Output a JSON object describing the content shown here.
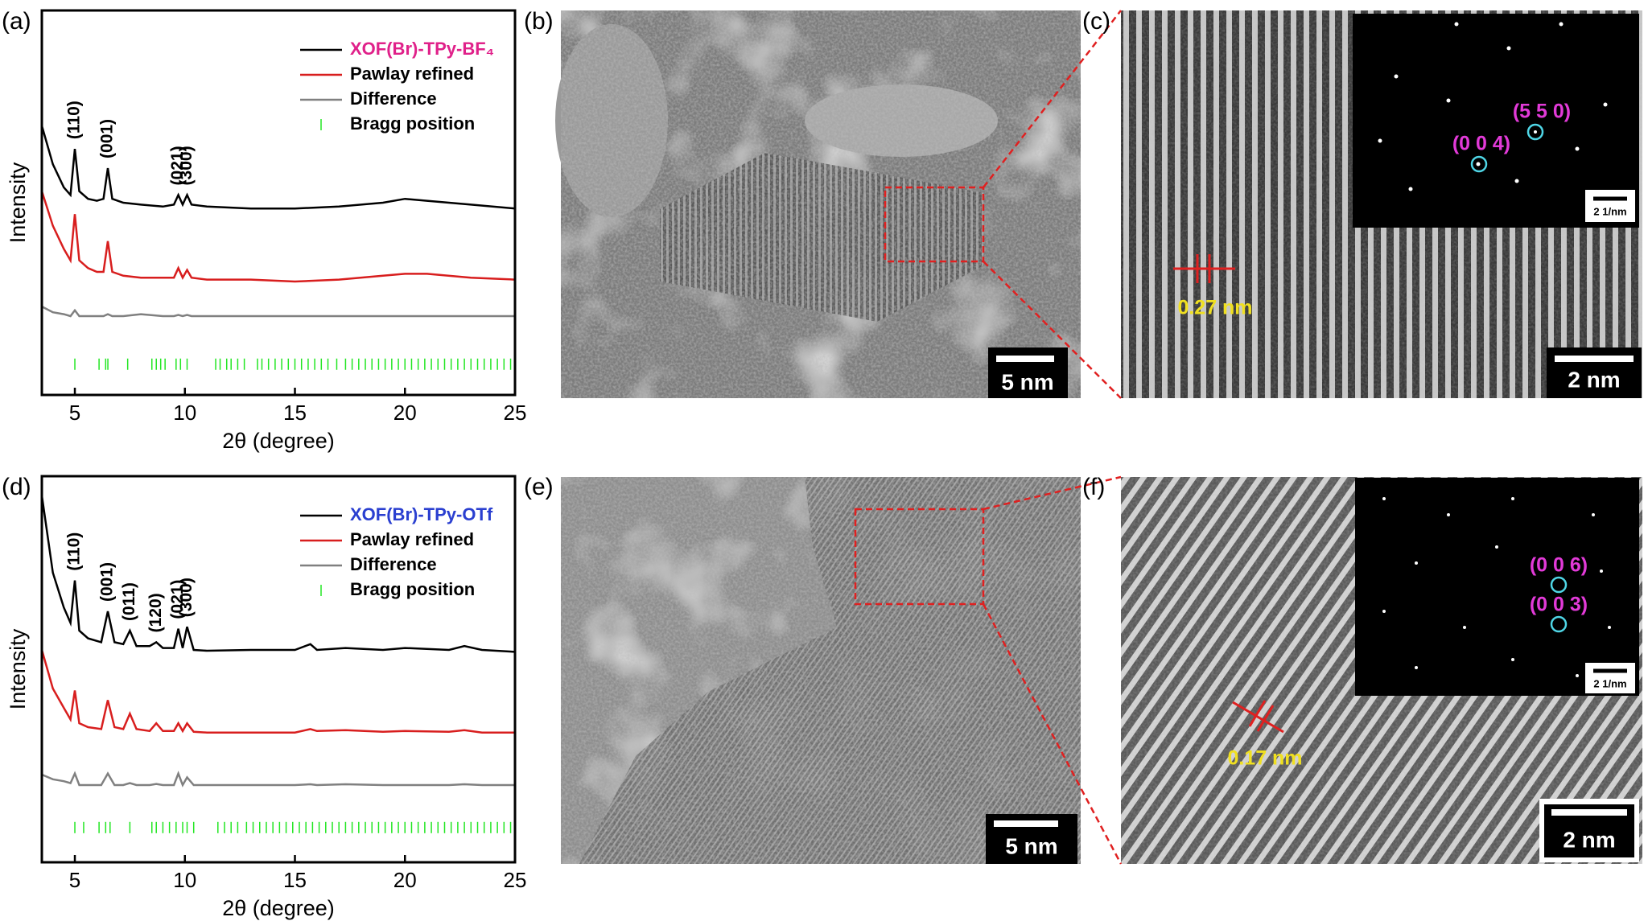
{
  "chart_data": [
    {
      "type": "line",
      "panel": "(a)",
      "xlabel": "2θ (degree)",
      "ylabel": "Intensity",
      "xlim": [
        3.5,
        25
      ],
      "xticks": [
        5,
        10,
        15,
        20,
        25
      ],
      "ylim": [
        0,
        100
      ],
      "x": [
        3.5,
        4,
        4.5,
        4.8,
        5,
        5.2,
        5.6,
        6,
        6.3,
        6.5,
        6.7,
        7.2,
        8,
        9,
        9.5,
        9.7,
        9.9,
        10.1,
        10.3,
        11,
        13,
        15,
        17,
        19,
        20,
        21,
        23,
        25
      ],
      "series": [
        {
          "name": "XOF(Br)-TPy-BF₄",
          "color": "#000000",
          "label_color": "#e0218a",
          "values": [
            70,
            60,
            54,
            52,
            64,
            53,
            51,
            50.5,
            51,
            59,
            51,
            50,
            49.5,
            49,
            49.5,
            52,
            49.5,
            52,
            49.5,
            49,
            48.5,
            48.5,
            49,
            50,
            51,
            50.5,
            49.5,
            48.5
          ]
        },
        {
          "name": "Pawlay refined",
          "color": "#d81e1e",
          "values": [
            53,
            44,
            38,
            35,
            47,
            35,
            33,
            32,
            32,
            40,
            32,
            31,
            30.5,
            30.5,
            30.5,
            33,
            30.5,
            32.5,
            30.5,
            30,
            30,
            29.5,
            30,
            31,
            31.5,
            31.5,
            30.5,
            30
          ]
        },
        {
          "name": "Difference",
          "color": "#808080",
          "values": [
            23,
            21.5,
            21,
            20.5,
            22,
            20.5,
            20.5,
            20.5,
            20.5,
            21,
            20.5,
            20.5,
            21,
            20.5,
            20.5,
            20.8,
            20.5,
            20.8,
            20.5,
            20.5,
            20.5,
            20.5,
            20.5,
            20.5,
            20.5,
            20.5,
            20.5,
            20.5
          ]
        }
      ],
      "bragg": {
        "name": "Bragg position",
        "color": "#22e622",
        "level": 8,
        "positions": [
          5.0,
          6.1,
          6.4,
          6.5,
          7.4,
          8.5,
          8.7,
          8.9,
          9.1,
          9.6,
          9.8,
          10.1,
          11.4,
          11.6,
          11.9,
          12.1,
          12.4,
          12.7,
          13.3,
          13.5,
          13.8,
          14.1,
          14.4,
          14.7,
          15.0,
          15.3,
          15.6,
          15.9,
          16.2,
          16.5,
          16.9,
          17.3,
          17.6,
          17.9,
          18.2,
          18.5,
          18.8,
          19.1,
          19.4,
          19.7,
          20.0,
          20.3,
          20.6,
          20.9,
          21.2,
          21.5,
          21.8,
          22.1,
          22.4,
          22.7,
          23.0,
          23.3,
          23.6,
          23.9,
          24.2,
          24.5,
          24.8
        ]
      },
      "peak_labels": [
        {
          "text": "(110)",
          "x": 5
        },
        {
          "text": "(001)",
          "x": 6.5
        },
        {
          "text": "(021)",
          "x": 9.7
        },
        {
          "text": "(300)",
          "x": 10.1
        }
      ]
    },
    {
      "type": "line",
      "panel": "(d)",
      "xlabel": "2θ (degree)",
      "ylabel": "Intensity",
      "xlim": [
        3.5,
        25
      ],
      "xticks": [
        5,
        10,
        15,
        20,
        25
      ],
      "ylim": [
        0,
        100
      ],
      "x": [
        3.5,
        4,
        4.5,
        4.8,
        5,
        5.2,
        5.6,
        6.2,
        6.5,
        6.8,
        7.2,
        7.5,
        7.8,
        8.4,
        8.7,
        9,
        9.5,
        9.7,
        9.9,
        10.1,
        10.4,
        11,
        13,
        15,
        15.7,
        16,
        17.3,
        19,
        20,
        22,
        22.7,
        23.5,
        25
      ],
      "series": [
        {
          "name": "XOF(Br)-TPy-OTf",
          "color": "#000000",
          "label_color": "#2a3fd0",
          "values": [
            95,
            75,
            66,
            62,
            73,
            60,
            58,
            57,
            65,
            57,
            56.5,
            60,
            56,
            56,
            57,
            55.5,
            55.5,
            60.5,
            55.5,
            61,
            55,
            54.8,
            55,
            55,
            56.5,
            55,
            55.5,
            55,
            55.5,
            55,
            56,
            55,
            54.5
          ]
        },
        {
          "name": "Pawlay refined",
          "color": "#d81e1e",
          "values": [
            55,
            45,
            40,
            37,
            44.5,
            36,
            35,
            34.5,
            42,
            35,
            34.5,
            38.5,
            34.5,
            34,
            36,
            34,
            34,
            36,
            34,
            36,
            33.8,
            33.6,
            33.6,
            33.6,
            34.5,
            34,
            34.2,
            33.8,
            34,
            33.8,
            34.2,
            33.6,
            33.6
          ]
        },
        {
          "name": "Difference",
          "color": "#808080",
          "values": [
            22.7,
            21.5,
            21,
            20.5,
            23,
            20,
            20,
            20,
            23,
            20,
            20,
            20.5,
            20,
            20,
            20.3,
            20,
            20,
            23,
            20,
            22,
            20,
            20,
            20,
            20,
            20.2,
            20,
            20.2,
            20,
            20,
            20,
            20.2,
            20,
            20
          ]
        }
      ],
      "bragg": {
        "name": "Bragg position",
        "color": "#22e622",
        "level": 9,
        "positions": [
          5.0,
          5.4,
          6.1,
          6.4,
          6.6,
          7.5,
          8.5,
          8.7,
          9.0,
          9.3,
          9.6,
          9.9,
          10.1,
          10.4,
          11.5,
          11.8,
          12.1,
          12.4,
          12.8,
          13.1,
          13.4,
          13.7,
          14.0,
          14.3,
          14.6,
          14.9,
          15.2,
          15.5,
          15.8,
          16.1,
          16.4,
          16.7,
          17.0,
          17.3,
          17.6,
          17.9,
          18.2,
          18.5,
          18.8,
          19.1,
          19.4,
          19.7,
          20.0,
          20.3,
          20.6,
          20.9,
          21.2,
          21.5,
          21.8,
          22.1,
          22.4,
          22.7,
          23.0,
          23.3,
          23.6,
          23.9,
          24.2,
          24.5,
          24.8
        ]
      },
      "peak_labels": [
        {
          "text": "(110)",
          "x": 5
        },
        {
          "text": "(001)",
          "x": 6.5
        },
        {
          "text": "(011)",
          "x": 7.5
        },
        {
          "text": "(120)",
          "x": 8.7
        },
        {
          "text": "(021)",
          "x": 9.7
        },
        {
          "text": "(300)",
          "x": 10.1
        }
      ]
    }
  ],
  "images": {
    "b": {
      "label": "(b)",
      "scale": "5 nm"
    },
    "c": {
      "label": "(c)",
      "scale": "2 nm",
      "spacing": "0.27 nm",
      "spots": [
        "(5 5 0)",
        "(0 0 4)"
      ],
      "inset_scale": "2 1/nm"
    },
    "e": {
      "label": "(e)",
      "scale": "5 nm"
    },
    "f": {
      "label": "(f)",
      "scale": "2 nm",
      "spacing": "0.17 nm",
      "spots": [
        "(0 0 6)",
        "(0 0 3)"
      ],
      "inset_scale": "2 1/nm"
    }
  }
}
